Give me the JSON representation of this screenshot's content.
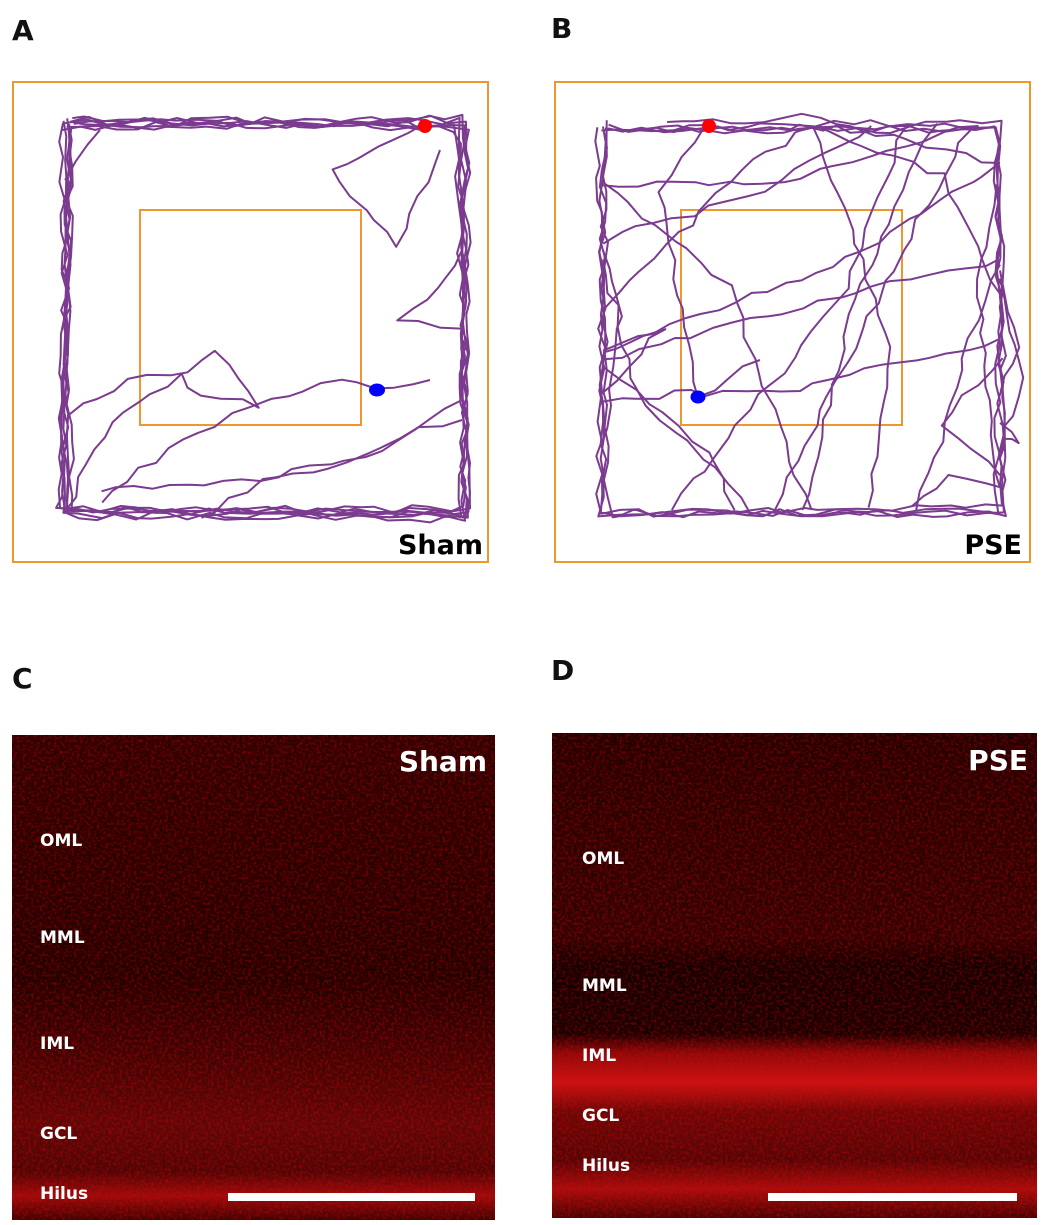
{
  "panels": [
    {
      "label": "A",
      "group": "Sham"
    },
    {
      "label": "B",
      "group": "PSE"
    },
    {
      "label": "C",
      "group": "Sham",
      "layers": [
        "OML",
        "MML",
        "IML",
        "GCL",
        "Hilus"
      ]
    },
    {
      "label": "D",
      "group": "PSE",
      "layers": [
        "OML",
        "MML",
        "IML",
        "GCL",
        "Hilus"
      ]
    }
  ]
}
